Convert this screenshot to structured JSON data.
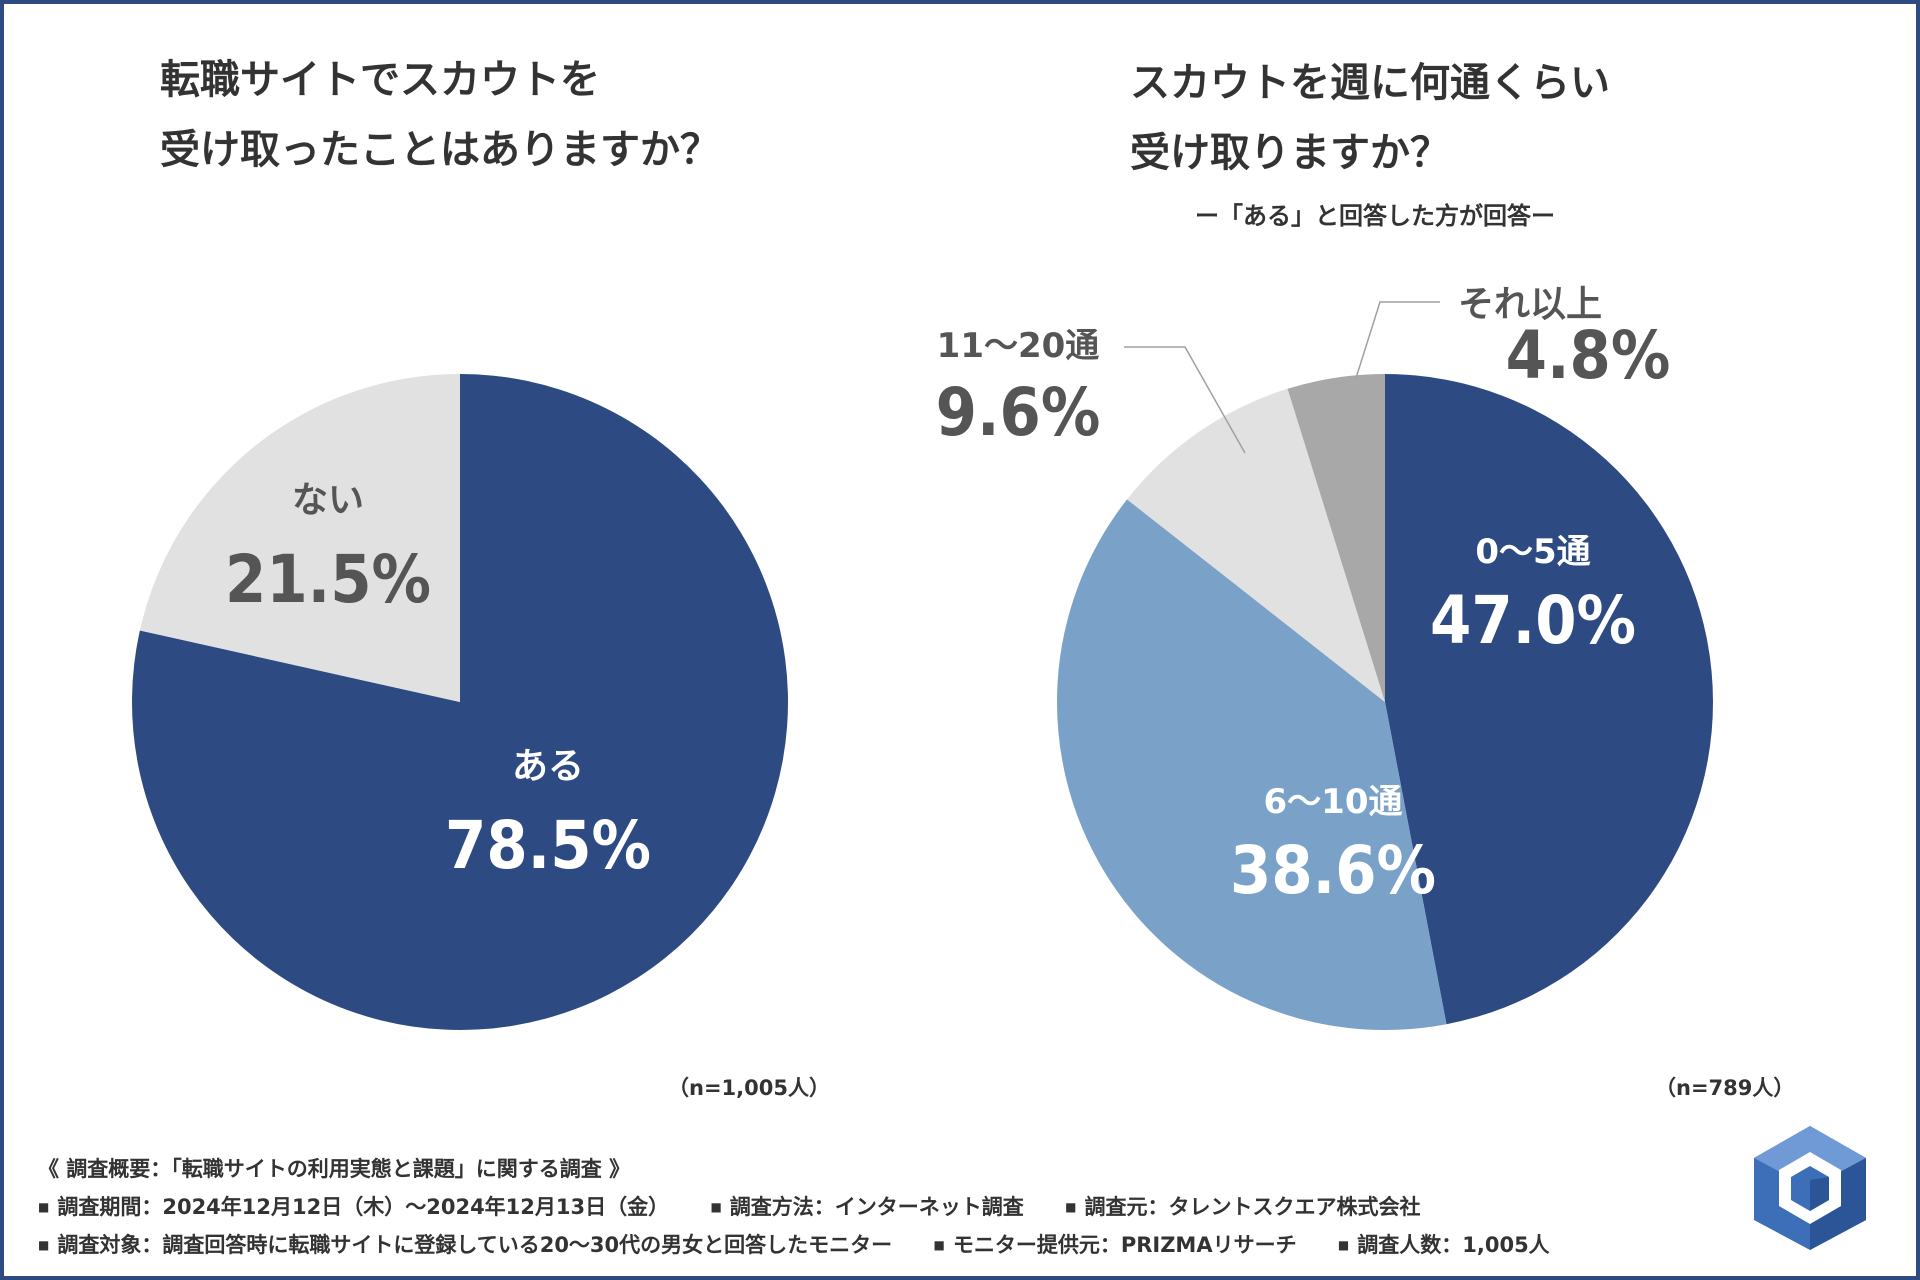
{
  "left_chart": {
    "title_lines": [
      "転職サイトでスカウトを",
      "受け取ったことはありますか？"
    ],
    "n_label": "（n=1,005人）"
  },
  "right_chart": {
    "title_lines": [
      "スカウトを週に何通くらい",
      "受け取りますか？"
    ],
    "subtitle": "ー「ある」と回答した方が回答ー",
    "n_label": "（n=789人）"
  },
  "colors": {
    "navy": "#2d4b82",
    "light_blue": "#7aa2c8",
    "light_gray": "#e1e1e1",
    "mid_gray": "#a8a8a8",
    "label_dark": "#555555",
    "label_white": "#ffffff"
  },
  "chart_data": [
    {
      "type": "pie",
      "title": "転職サイトでスカウトを受け取ったことはありますか？",
      "categories": [
        "ある",
        "ない"
      ],
      "values": [
        78.5,
        21.5
      ],
      "value_labels": [
        "78.5%",
        "21.5%"
      ],
      "start": "12 o'clock, clockwise"
    },
    {
      "type": "pie",
      "title": "スカウトを週に何通くらい受け取りますか？",
      "categories": [
        "0〜5通",
        "6〜10通",
        "11〜20通",
        "それ以上"
      ],
      "values": [
        47.0,
        38.6,
        9.6,
        4.8
      ],
      "value_labels": [
        "47.0%",
        "38.6%",
        "9.6%",
        "4.8%"
      ],
      "start": "12 o'clock, clockwise"
    }
  ],
  "footer": {
    "overview": "《 調査概要：「転職サイトの利用実態と課題」に関する調査 》",
    "row2": [
      "調査期間：2024年12月12日（木）〜2024年12月13日（金）",
      "調査方法：インターネット調査",
      "調査元：タレントスクエア株式会社"
    ],
    "row3": [
      "調査対象：調査回答時に転職サイトに登録している20〜30代の男女と回答したモニター",
      "モニター提供元：PRIZMAリサーチ",
      "調査人数：1,005人"
    ]
  }
}
